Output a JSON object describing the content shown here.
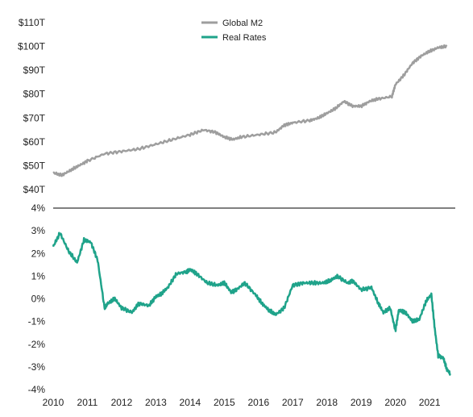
{
  "chart_data": [
    {
      "type": "line",
      "title": "",
      "xlabel": "",
      "ylabel": "",
      "ylim": [
        40,
        110
      ],
      "y_ticks": [
        "$110T",
        "$100T",
        "$90T",
        "$80T",
        "$70T",
        "$60T",
        "$50T",
        "$40T"
      ],
      "legend_position": "top-center",
      "series": [
        {
          "name": "Global M2",
          "color": "#9e9e9e",
          "x": [
            2010.0,
            2010.25,
            2010.5,
            2010.75,
            2011.0,
            2011.5,
            2012.0,
            2012.5,
            2013.0,
            2013.5,
            2014.0,
            2014.4,
            2014.75,
            2015.0,
            2015.25,
            2015.5,
            2016.0,
            2016.5,
            2016.75,
            2017.0,
            2017.5,
            2017.75,
            2018.0,
            2018.25,
            2018.5,
            2018.75,
            2019.0,
            2019.25,
            2019.5,
            2019.9,
            2020.0,
            2020.25,
            2020.5,
            2020.75,
            2021.0,
            2021.25,
            2021.5
          ],
          "y": [
            47,
            46,
            48,
            50,
            52,
            55,
            56,
            57,
            59,
            61,
            63,
            65,
            64,
            62,
            61,
            62,
            63,
            64,
            67,
            68,
            69,
            70,
            72,
            74,
            77,
            75,
            75,
            77,
            78,
            79,
            84,
            88,
            93,
            96,
            98,
            99.5,
            100
          ]
        }
      ]
    },
    {
      "type": "line",
      "title": "",
      "xlabel": "",
      "ylabel": "",
      "ylim": [
        -4,
        4
      ],
      "y_ticks": [
        "4%",
        "3%",
        "2%",
        "1%",
        "0%",
        "-1%",
        "-2%",
        "-3%",
        "-4%"
      ],
      "x_ticks": [
        "2010",
        "2011",
        "2012",
        "2013",
        "2014",
        "2015",
        "2016",
        "2017",
        "2018",
        "2019",
        "2020",
        "2021"
      ],
      "xlim": [
        2010,
        2021.75
      ],
      "series": [
        {
          "name": "Real Rates",
          "color": "#1fa38a",
          "x": [
            2010.0,
            2010.2,
            2010.45,
            2010.7,
            2010.9,
            2011.1,
            2011.3,
            2011.5,
            2011.6,
            2011.8,
            2012.0,
            2012.3,
            2012.5,
            2012.8,
            2013.0,
            2013.15,
            2013.35,
            2013.6,
            2013.9,
            2014.0,
            2014.2,
            2014.5,
            2014.8,
            2015.0,
            2015.2,
            2015.35,
            2015.6,
            2015.9,
            2016.1,
            2016.3,
            2016.5,
            2016.75,
            2017.0,
            2017.3,
            2017.6,
            2017.9,
            2018.1,
            2018.3,
            2018.6,
            2018.75,
            2019.0,
            2019.3,
            2019.5,
            2019.65,
            2019.85,
            2020.0,
            2020.1,
            2020.3,
            2020.5,
            2020.7,
            2020.9,
            2021.05,
            2021.15,
            2021.25,
            2021.4,
            2021.5,
            2021.6
          ],
          "y": [
            2.3,
            2.9,
            2.1,
            1.6,
            2.6,
            2.5,
            1.7,
            -0.4,
            -0.2,
            0.0,
            -0.4,
            -0.6,
            -0.2,
            -0.3,
            0.1,
            0.2,
            0.5,
            1.1,
            1.2,
            1.3,
            1.1,
            0.7,
            0.6,
            0.7,
            0.3,
            0.4,
            0.7,
            0.2,
            -0.2,
            -0.5,
            -0.7,
            -0.4,
            0.6,
            0.7,
            0.7,
            0.7,
            0.8,
            1.0,
            0.7,
            0.8,
            0.4,
            0.5,
            -0.2,
            -0.6,
            -0.4,
            -1.4,
            -0.5,
            -0.6,
            -1.0,
            -0.9,
            -0.1,
            0.2,
            -1.3,
            -2.5,
            -2.6,
            -3.1,
            -3.3
          ]
        }
      ]
    }
  ]
}
